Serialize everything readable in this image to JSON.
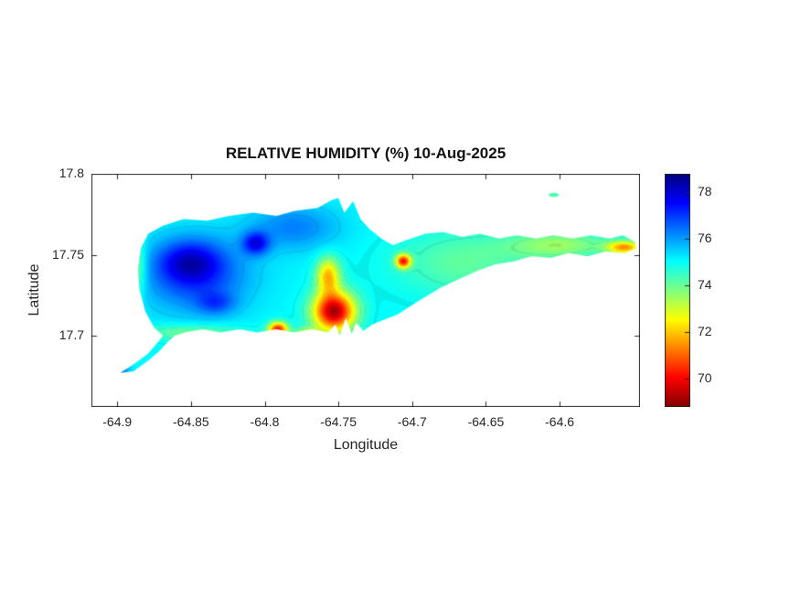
{
  "figure": {
    "background": "#ffffff",
    "axes_color": "#262626"
  },
  "chart_data": {
    "type": "heatmap",
    "subtype": "filled-contour-geographic-map",
    "title": "RELATIVE HUMIDITY (%) 10-Aug-2025",
    "xlabel": "Longitude",
    "ylabel": "Latitude",
    "xlim": [
      -64.9175,
      -64.5455
    ],
    "ylim": [
      17.656,
      17.8
    ],
    "xticks": [
      -64.9,
      -64.85,
      -64.8,
      -64.75,
      -64.7,
      -64.65,
      -64.6
    ],
    "xtick_labels": [
      "-64.9",
      "-64.85",
      "-64.8",
      "-64.75",
      "-64.7",
      "-64.65",
      "-64.6"
    ],
    "yticks": [
      17.8,
      17.75,
      17.7
    ],
    "ytick_labels": [
      "17.8",
      "17.75",
      "17.7"
    ],
    "grid": false,
    "colorbar": {
      "orientation": "vertical",
      "position": "right",
      "colormap": "jet-reversed-high-is-blue",
      "range": [
        68.8,
        78.8
      ],
      "ticks": [
        70,
        72,
        74,
        76,
        78
      ],
      "tick_labels": [
        "70",
        "72",
        "74",
        "76",
        "78"
      ]
    },
    "field": {
      "units": "%",
      "base_value": 75.1,
      "clamp": [
        68.85,
        78.75
      ],
      "features": [
        {
          "name": "west-highland-blue",
          "center": [
            -64.847,
            17.738
          ],
          "sigma": [
            0.035,
            0.022
          ],
          "amplitude": 2.0,
          "approx_value": 77.1
        },
        {
          "name": "west-navy-core",
          "center": [
            -64.851,
            17.746
          ],
          "sigma": [
            0.02,
            0.012
          ],
          "amplitude": 1.6,
          "approx_value": 78.5
        },
        {
          "name": "west-navy-lobe-south",
          "center": [
            -64.833,
            17.72
          ],
          "sigma": [
            0.013,
            0.007
          ],
          "amplitude": 1.2,
          "approx_value": 77.9
        },
        {
          "name": "navy-spot-north",
          "center": [
            -64.806,
            17.757
          ],
          "sigma": [
            0.009,
            0.007
          ],
          "amplitude": 2.3,
          "approx_value": 78.0
        },
        {
          "name": "north-central-lightblue",
          "center": [
            -64.78,
            17.767
          ],
          "sigma": [
            0.03,
            0.014
          ],
          "amplitude": 1.2,
          "approx_value": 76.3
        },
        {
          "name": "east-central-green",
          "center": [
            -64.665,
            17.745
          ],
          "sigma": [
            0.045,
            0.02
          ],
          "amplitude": -1.0,
          "approx_value": 74.1
        },
        {
          "name": "east-peninsula-yellowgreen",
          "center": [
            -64.6,
            17.756
          ],
          "sigma": [
            0.035,
            0.009
          ],
          "amplitude": -1.5,
          "approx_value": 73.6
        },
        {
          "name": "east-tip-orange",
          "center": [
            -64.556,
            17.7545
          ],
          "sigma": [
            0.012,
            0.004
          ],
          "amplitude": -3.4,
          "approx_value": 71.6
        },
        {
          "name": "south-low-red-main",
          "center": [
            -64.753,
            17.715
          ],
          "sigma": [
            0.014,
            0.012
          ],
          "amplitude": -5.9,
          "approx_value": 69.2
        },
        {
          "name": "orange-ridge-north-of-red",
          "center": [
            -64.757,
            17.737
          ],
          "sigma": [
            0.008,
            0.011
          ],
          "amplitude": -3.2,
          "approx_value": 71.9
        },
        {
          "name": "south-coast-red-spot",
          "center": [
            -64.791,
            17.704
          ],
          "sigma": [
            0.0065,
            0.0045
          ],
          "amplitude": -4.8,
          "approx_value": 70.3
        },
        {
          "name": "south-coast-orange-strip",
          "center": [
            -64.771,
            17.701
          ],
          "sigma": [
            0.009,
            0.004
          ],
          "amplitude": -2.0,
          "approx_value": 73.1
        },
        {
          "name": "red-dot-northeast",
          "center": [
            -64.706,
            17.746
          ],
          "sigma": [
            0.005,
            0.0042
          ],
          "amplitude": -4.6,
          "approx_value": 70.5
        },
        {
          "name": "west-coast-yellow-fringe",
          "center": [
            -64.888,
            17.742
          ],
          "sigma": [
            0.007,
            0.018
          ],
          "amplitude": -1.8,
          "approx_value": 73.3
        },
        {
          "name": "southwest-coast-green-fringe",
          "center": [
            -64.85,
            17.702
          ],
          "sigma": [
            0.035,
            0.005
          ],
          "amplitude": -1.2,
          "approx_value": 73.9
        },
        {
          "name": "west-tail-blue-tip",
          "center": [
            -64.897,
            17.679
          ],
          "sigma": [
            0.005,
            0.0035
          ],
          "amplitude": 1.4,
          "approx_value": 76.5
        }
      ]
    },
    "island_outline_lonlat": [
      [
        -64.898,
        17.677
      ],
      [
        -64.888,
        17.683
      ],
      [
        -64.879,
        17.689
      ],
      [
        -64.8725,
        17.696
      ],
      [
        -64.869,
        17.7
      ],
      [
        -64.875,
        17.705
      ],
      [
        -64.881,
        17.715
      ],
      [
        -64.885,
        17.729
      ],
      [
        -64.886,
        17.741
      ],
      [
        -64.884,
        17.754
      ],
      [
        -64.879,
        17.763
      ],
      [
        -64.869,
        17.768
      ],
      [
        -64.855,
        17.772
      ],
      [
        -64.839,
        17.771
      ],
      [
        -64.824,
        17.774
      ],
      [
        -64.808,
        17.776
      ],
      [
        -64.792,
        17.774
      ],
      [
        -64.78,
        17.777
      ],
      [
        -64.764,
        17.779
      ],
      [
        -64.754,
        17.784
      ],
      [
        -64.75,
        17.785
      ],
      [
        -64.746,
        17.776
      ],
      [
        -64.74,
        17.783
      ],
      [
        -64.735,
        17.772
      ],
      [
        -64.729,
        17.766
      ],
      [
        -64.721,
        17.76
      ],
      [
        -64.713,
        17.756
      ],
      [
        -64.704,
        17.759
      ],
      [
        -64.691,
        17.763
      ],
      [
        -64.679,
        17.764
      ],
      [
        -64.666,
        17.761
      ],
      [
        -64.654,
        17.763
      ],
      [
        -64.641,
        17.76
      ],
      [
        -64.629,
        17.762
      ],
      [
        -64.616,
        17.76
      ],
      [
        -64.604,
        17.762
      ],
      [
        -64.591,
        17.76
      ],
      [
        -64.579,
        17.762
      ],
      [
        -64.566,
        17.76
      ],
      [
        -64.557,
        17.762
      ],
      [
        -64.549,
        17.758
      ],
      [
        -64.548,
        17.754
      ],
      [
        -64.556,
        17.751
      ],
      [
        -64.569,
        17.752
      ],
      [
        -64.581,
        17.749
      ],
      [
        -64.594,
        17.751
      ],
      [
        -64.606,
        17.748
      ],
      [
        -64.619,
        17.749
      ],
      [
        -64.631,
        17.746
      ],
      [
        -64.644,
        17.744
      ],
      [
        -64.656,
        17.74
      ],
      [
        -64.668,
        17.735
      ],
      [
        -64.68,
        17.73
      ],
      [
        -64.691,
        17.724
      ],
      [
        -64.7,
        17.719
      ],
      [
        -64.71,
        17.713
      ],
      [
        -64.719,
        17.71
      ],
      [
        -64.727,
        17.707
      ],
      [
        -64.733,
        17.703
      ],
      [
        -64.738,
        17.708
      ],
      [
        -64.741,
        17.701
      ],
      [
        -64.745,
        17.711
      ],
      [
        -64.749,
        17.7
      ],
      [
        -64.752,
        17.707
      ],
      [
        -64.757,
        17.702
      ],
      [
        -64.768,
        17.704
      ],
      [
        -64.78,
        17.702
      ],
      [
        -64.792,
        17.704
      ],
      [
        -64.805,
        17.702
      ],
      [
        -64.817,
        17.704
      ],
      [
        -64.83,
        17.702
      ],
      [
        -64.842,
        17.704
      ],
      [
        -64.854,
        17.702
      ],
      [
        -64.861,
        17.7
      ],
      [
        -64.866,
        17.696
      ],
      [
        -64.872,
        17.69
      ],
      [
        -64.88,
        17.684
      ],
      [
        -64.889,
        17.678
      ]
    ],
    "islet": {
      "name": "small-cay-northeast",
      "center": [
        -64.604,
        17.787
      ],
      "rx": 0.0035,
      "ry": 0.0013,
      "value": 74.3
    }
  }
}
